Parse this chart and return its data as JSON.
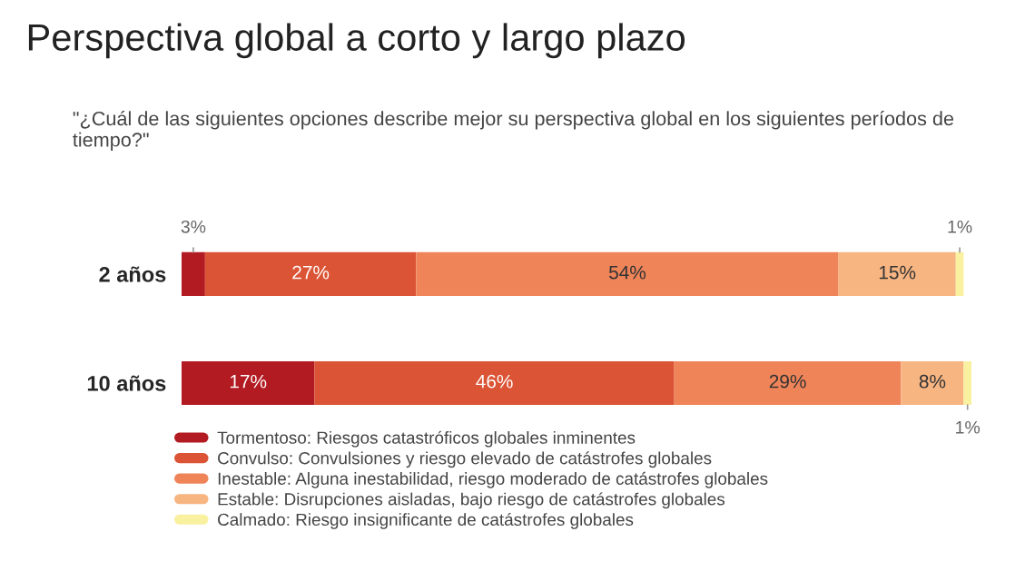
{
  "chart_data": {
    "type": "bar",
    "orientation": "horizontal",
    "stacked": true,
    "legend": "bottom",
    "title": "Perspectiva global a corto y largo plazo",
    "subtitle": "\"¿Cuál de las siguientes opciones describe mejor su perspectiva global en los siguientes períodos de tiempo?\"",
    "categories": [
      "2 años",
      "10 años"
    ],
    "series": [
      {
        "name": "Tormentoso: Riesgos catastróficos globales inminentes",
        "color": "#b31b22",
        "values": [
          3,
          17
        ],
        "value_labels": [
          "3%",
          "17%"
        ]
      },
      {
        "name": "Convulso: Convulsiones y riesgo elevado de catástrofes globales",
        "color": "#dc5436",
        "values": [
          27,
          46
        ],
        "value_labels": [
          "27%",
          "46%"
        ]
      },
      {
        "name": "Inestable: Alguna inestabilidad, riesgo moderado de catástrofes globales",
        "color": "#ef8459",
        "values": [
          54,
          29
        ],
        "value_labels": [
          "54%",
          "29%"
        ]
      },
      {
        "name": "Estable: Disrupciones aisladas, bajo riesgo de catástrofes globales",
        "color": "#f7b582",
        "values": [
          15,
          8
        ],
        "value_labels": [
          "15%",
          "8%"
        ]
      },
      {
        "name": "Calmado: Riesgo insignificante de catástrofes globales",
        "color": "#f9f0a0",
        "values": [
          1,
          1
        ],
        "value_labels": [
          "1%",
          "1%"
        ]
      }
    ]
  }
}
